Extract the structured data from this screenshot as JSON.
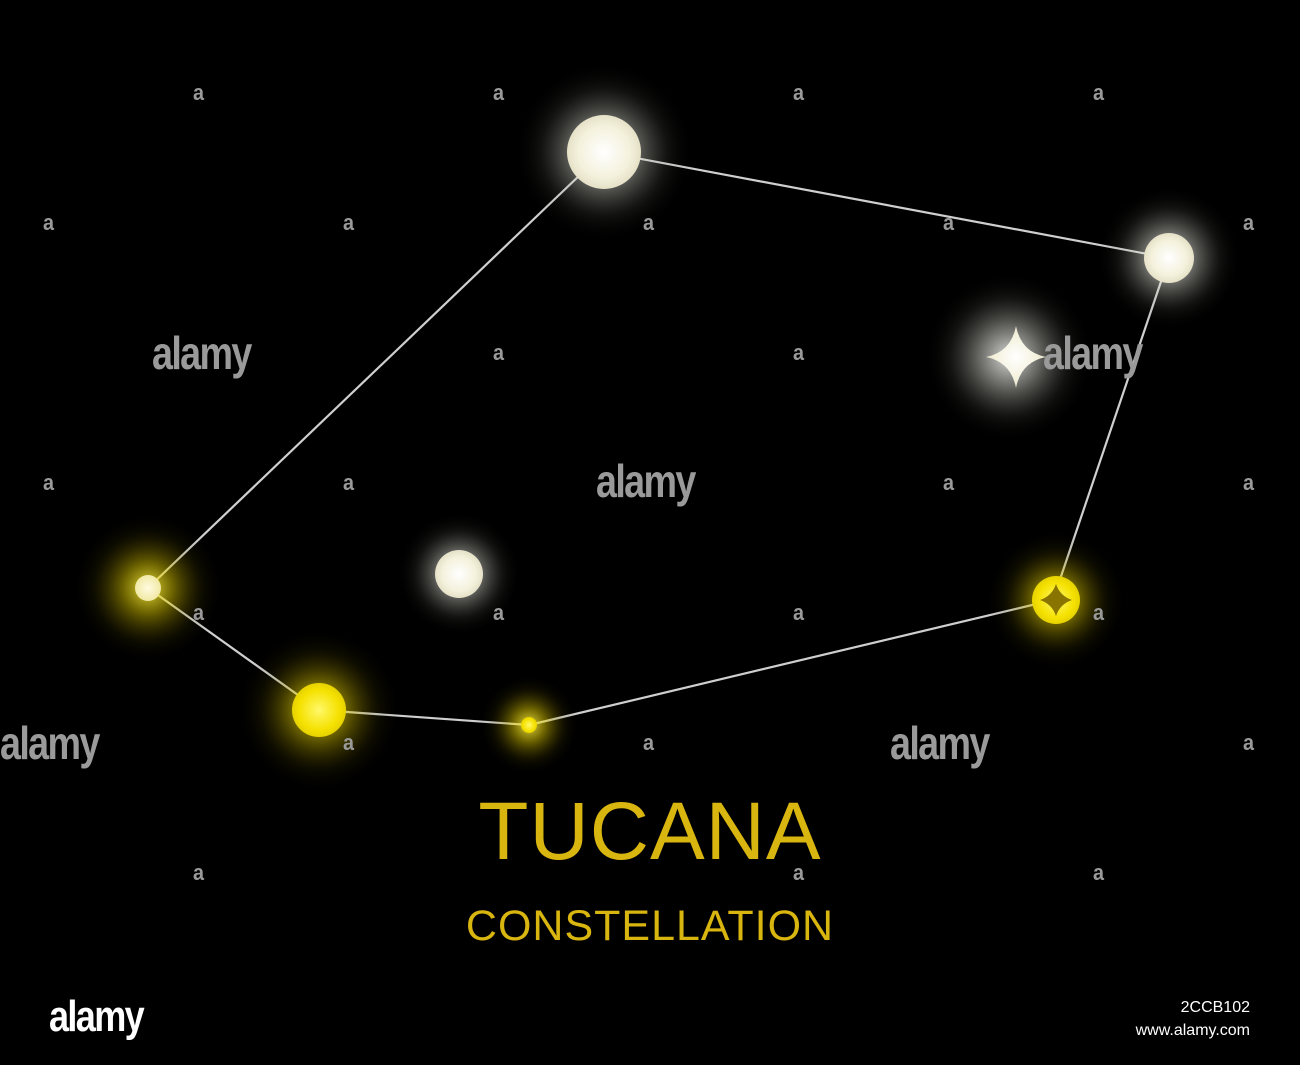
{
  "title": "TUCANA",
  "subtitle": "CONSTELLATION",
  "watermark": {
    "word": "alamy",
    "glyph": "a"
  },
  "footer": {
    "logo": "alamy",
    "image_id": "2CCB102",
    "url": "www.alamy.com"
  },
  "colors": {
    "background": "#000000",
    "title": "#d9b50f",
    "white_star": "#f2efd8",
    "yellow_star": "#f2e10a",
    "line": "#cfcfcf",
    "watermark": "#9a9a9a"
  }
}
